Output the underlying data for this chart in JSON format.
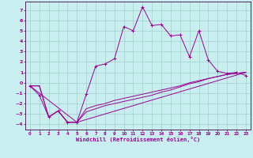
{
  "xlabel": "Windchill (Refroidissement éolien,°C)",
  "background_color": "#c8eef0",
  "grid_color": "#a0d0c8",
  "line_color": "#990099",
  "spine_color": "#440044",
  "xlim": [
    -0.5,
    23.5
  ],
  "ylim": [
    -4.5,
    7.8
  ],
  "xticks": [
    0,
    1,
    2,
    3,
    4,
    5,
    6,
    7,
    8,
    9,
    10,
    11,
    12,
    13,
    14,
    15,
    16,
    17,
    18,
    19,
    20,
    21,
    22,
    23
  ],
  "yticks": [
    -4,
    -3,
    -2,
    -1,
    0,
    1,
    2,
    3,
    4,
    5,
    6,
    7
  ],
  "line1_x": [
    0,
    1,
    2,
    3,
    4,
    5,
    6,
    7,
    8,
    9,
    10,
    11,
    12,
    13,
    14,
    15,
    16,
    17,
    18,
    19,
    20,
    21,
    22,
    23
  ],
  "line1_y": [
    -0.3,
    -1.2,
    -3.3,
    -2.7,
    -3.8,
    -3.8,
    -1.1,
    1.6,
    1.8,
    2.3,
    5.4,
    5.0,
    7.3,
    5.5,
    5.6,
    4.5,
    4.6,
    2.5,
    5.0,
    2.2,
    1.1,
    0.9,
    1.0,
    0.7
  ],
  "line2_x": [
    0,
    1,
    2,
    3,
    4,
    5,
    6,
    7,
    8,
    9,
    10,
    11,
    12,
    13,
    14,
    15,
    16,
    17,
    18,
    19,
    20,
    21,
    22,
    23
  ],
  "line2_y": [
    -0.3,
    -0.3,
    -3.3,
    -2.7,
    -3.8,
    -3.8,
    -2.5,
    -2.2,
    -2.0,
    -1.7,
    -1.5,
    -1.3,
    -1.1,
    -0.9,
    -0.7,
    -0.5,
    -0.3,
    -0.0,
    0.2,
    0.4,
    0.6,
    0.8,
    0.9,
    1.0
  ],
  "line3_x": [
    0,
    1,
    2,
    3,
    4,
    5,
    6,
    7,
    8,
    9,
    10,
    11,
    12,
    13,
    14,
    15,
    16,
    17,
    18,
    19,
    20,
    21,
    22,
    23
  ],
  "line3_y": [
    -0.3,
    -0.3,
    -3.3,
    -2.7,
    -3.8,
    -3.8,
    -2.8,
    -2.5,
    -2.2,
    -2.0,
    -1.8,
    -1.6,
    -1.4,
    -1.2,
    -0.9,
    -0.7,
    -0.4,
    -0.1,
    0.1,
    0.4,
    0.6,
    0.8,
    0.9,
    1.0
  ],
  "line4_x": [
    0,
    5,
    23
  ],
  "line4_y": [
    -0.3,
    -3.8,
    1.0
  ]
}
